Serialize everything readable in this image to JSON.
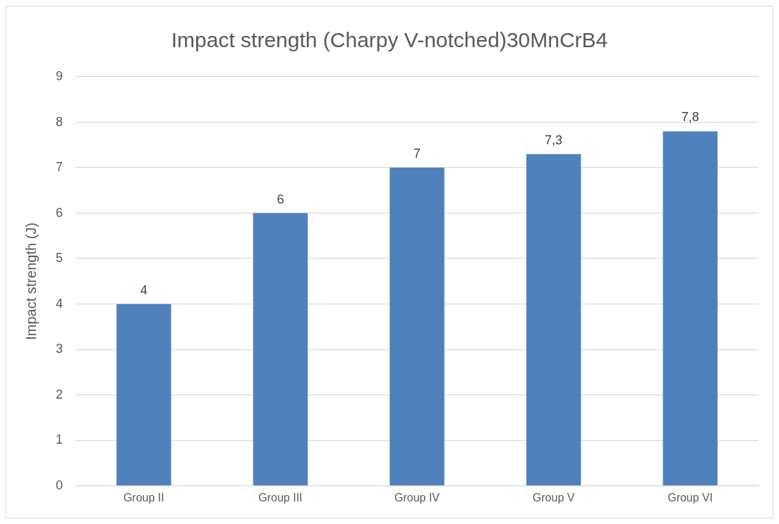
{
  "chart_data": {
    "type": "bar",
    "title": "Impact strength (Charpy V-notched)30MnCrB4",
    "ylabel": "Impact strength (J)",
    "categories": [
      "Group II",
      "Group III",
      "Group IV",
      "Group V",
      "Group VI"
    ],
    "values": [
      4,
      6,
      7,
      7.3,
      7.8
    ],
    "value_labels": [
      "4",
      "6",
      "7",
      "7,3",
      "7,8"
    ],
    "color": "#4f81bd",
    "ylim": [
      0,
      9
    ],
    "yticks": [
      0,
      1,
      2,
      3,
      4,
      5,
      6,
      7,
      8,
      9
    ],
    "grid": "y",
    "legend": false
  }
}
